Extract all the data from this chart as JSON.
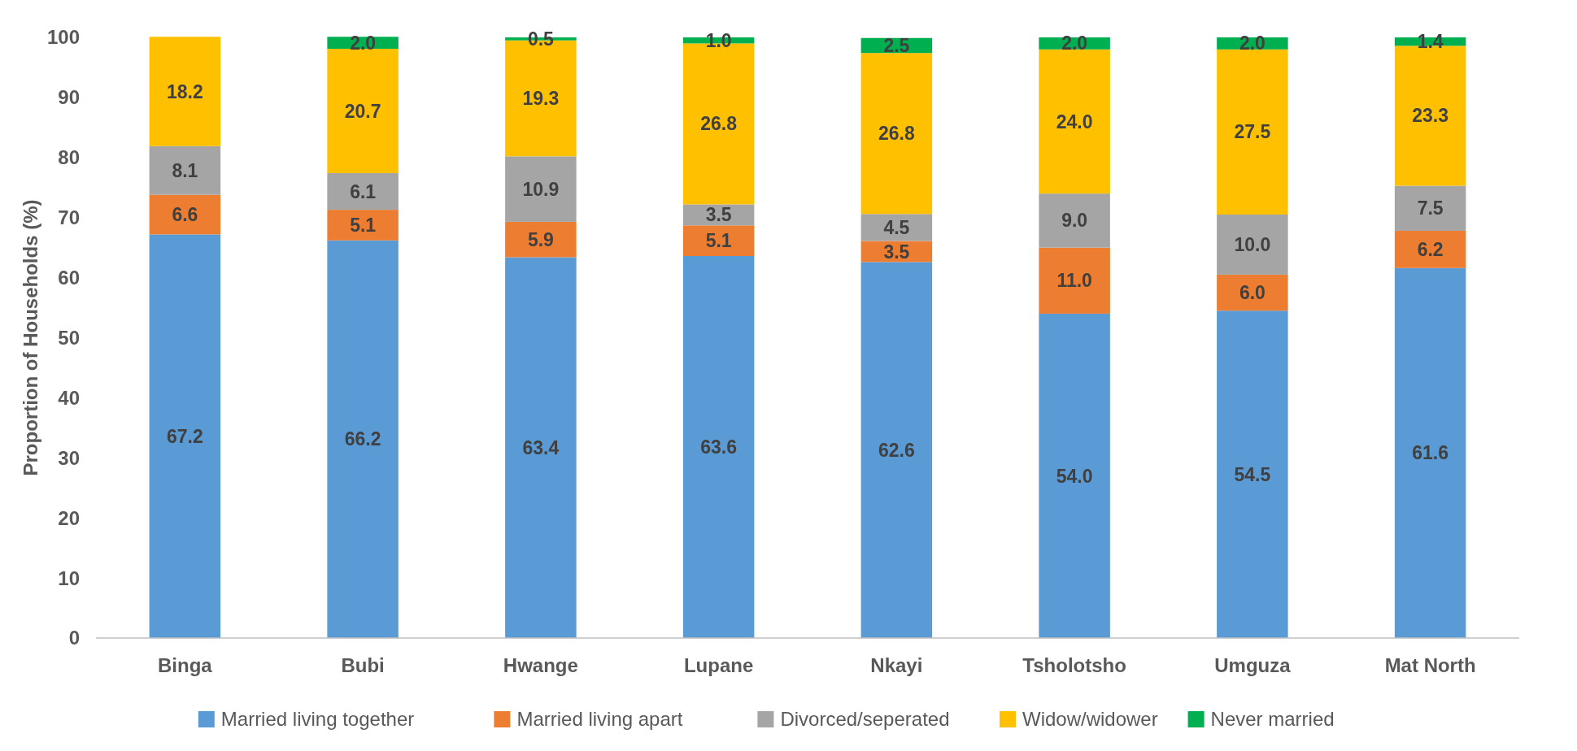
{
  "chart_data": {
    "type": "bar",
    "stacked": true,
    "ylabel": "Proportion of Households (%)",
    "categories": [
      "Binga",
      "Bubi",
      "Hwange",
      "Lupane",
      "Nkayi",
      "Tsholotsho",
      "Umguza",
      "Mat North"
    ],
    "series": [
      {
        "name": "Married living together",
        "color": "#5b9bd5",
        "values": [
          67.2,
          66.2,
          63.4,
          63.6,
          62.6,
          54.0,
          54.5,
          61.6
        ],
        "value_labels": [
          "67.2",
          "66.2",
          "63.4",
          "63.6",
          "62.6",
          "54.0",
          "54.5",
          "61.6"
        ]
      },
      {
        "name": "Married living apart",
        "color": "#ed7d31",
        "values": [
          6.6,
          5.1,
          5.9,
          5.1,
          3.5,
          11.0,
          6.0,
          6.2
        ],
        "value_labels": [
          "6.6",
          "5.1",
          "5.9",
          "5.1",
          "3.5",
          "11.0",
          "6.0",
          "6.2"
        ]
      },
      {
        "name": "Divorced/seperated",
        "color": "#a5a5a5",
        "values": [
          8.1,
          6.1,
          10.9,
          3.5,
          4.5,
          9.0,
          10.0,
          7.5
        ],
        "value_labels": [
          "8.1",
          "6.1",
          "10.9",
          "3.5",
          "4.5",
          "9.0",
          "10.0",
          "7.5"
        ]
      },
      {
        "name": "Widow/widower",
        "color": "#ffc000",
        "values": [
          18.2,
          20.7,
          19.3,
          26.8,
          26.8,
          24.0,
          27.5,
          23.3
        ],
        "value_labels": [
          "18.2",
          "20.7",
          "19.3",
          "26.8",
          "26.8",
          "24.0",
          "27.5",
          "23.3"
        ]
      },
      {
        "name": "Never married",
        "color": "#00b050",
        "values": [
          null,
          2.0,
          0.5,
          1.0,
          2.5,
          2.0,
          2.0,
          1.4
        ],
        "value_labels": [
          null,
          "2.0",
          "0.5",
          "1.0",
          "2.5",
          "2.0",
          "2.0",
          "1.4"
        ]
      }
    ],
    "ylim": [
      0,
      100
    ],
    "yticks": [
      0,
      10,
      20,
      30,
      40,
      50,
      60,
      70,
      80,
      90,
      100
    ],
    "grid": false,
    "legend": "bottom"
  }
}
